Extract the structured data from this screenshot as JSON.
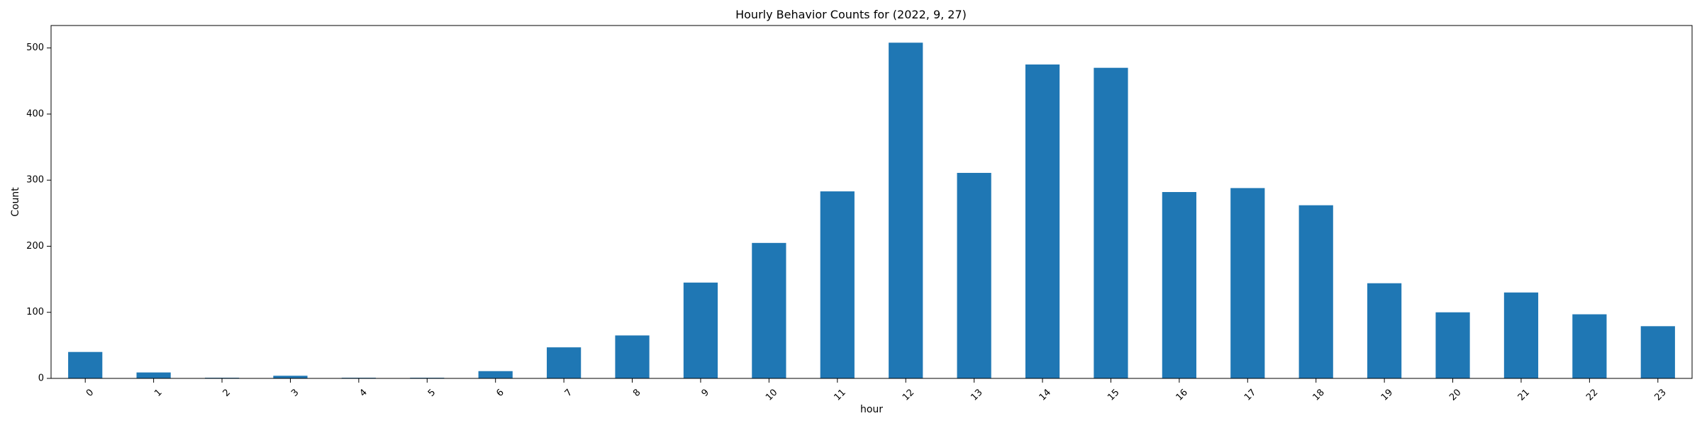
{
  "chart_data": {
    "type": "bar",
    "title": "Hourly Behavior Counts for (2022, 9, 27)",
    "xlabel": "hour",
    "ylabel": "Count",
    "categories": [
      "0",
      "1",
      "2",
      "3",
      "4",
      "5",
      "6",
      "7",
      "8",
      "9",
      "10",
      "11",
      "12",
      "13",
      "14",
      "15",
      "16",
      "17",
      "18",
      "19",
      "20",
      "21",
      "22",
      "23"
    ],
    "values": [
      40,
      9,
      1,
      4,
      1,
      1,
      11,
      47,
      65,
      145,
      205,
      283,
      508,
      311,
      475,
      470,
      282,
      288,
      262,
      144,
      100,
      130,
      97,
      79
    ],
    "ylim": [
      0,
      534
    ],
    "yticks": [
      0,
      100,
      200,
      300,
      400,
      500
    ],
    "xtick_rotation": "45 degrees",
    "bar_color": "#1f77b4",
    "grid": false,
    "legend": "none"
  }
}
